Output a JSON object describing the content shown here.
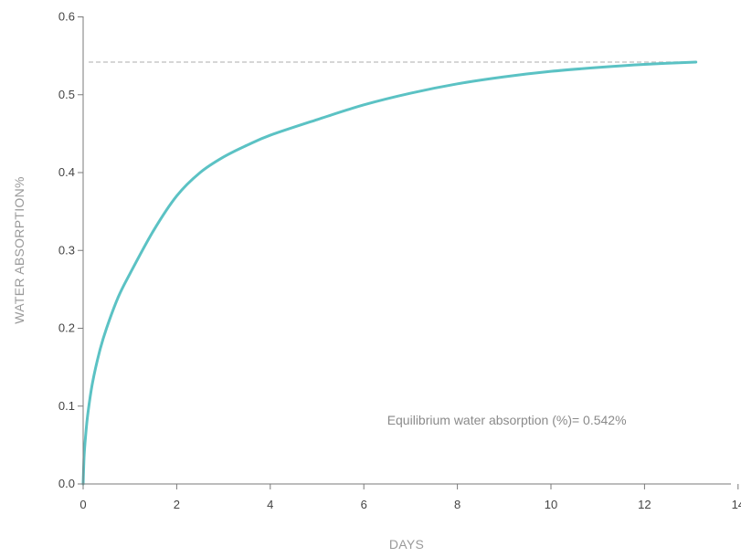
{
  "chart_data": {
    "type": "line",
    "title": "",
    "xlabel": "DAYS",
    "ylabel": "WATER ABSORPTION%",
    "xlim": [
      0,
      14
    ],
    "ylim": [
      0,
      0.6
    ],
    "xticks": [
      0,
      2,
      4,
      6,
      8,
      10,
      12,
      14
    ],
    "yticks": [
      0.0,
      0.1,
      0.2,
      0.3,
      0.4,
      0.5,
      0.6
    ],
    "xtick_labels": [
      "0",
      "2",
      "4",
      "6",
      "8",
      "10",
      "12",
      "14"
    ],
    "ytick_labels": [
      "0.0",
      "0.1",
      "0.2",
      "0.3",
      "0.4",
      "0.5",
      "0.6"
    ],
    "grid": false,
    "series": [
      {
        "color": "#5bc2c4",
        "x": [
          0,
          0.02,
          0.05,
          0.1,
          0.2,
          0.35,
          0.5,
          0.75,
          1,
          1.5,
          2,
          2.5,
          3,
          3.5,
          4,
          5,
          6,
          7,
          8,
          9,
          10,
          11,
          12,
          13.1
        ],
        "y": [
          0,
          0.035,
          0.06,
          0.09,
          0.13,
          0.17,
          0.2,
          0.24,
          0.27,
          0.325,
          0.37,
          0.4,
          0.42,
          0.435,
          0.448,
          0.468,
          0.487,
          0.502,
          0.514,
          0.523,
          0.53,
          0.535,
          0.539,
          0.542
        ]
      }
    ],
    "reference_line": {
      "y": 0.542,
      "color": "#c8c8c8",
      "style": "dashed"
    },
    "annotation": {
      "text": "Equilibrium water absorption (%)= 0.542%",
      "x": 11.3,
      "y": 0.082
    }
  }
}
